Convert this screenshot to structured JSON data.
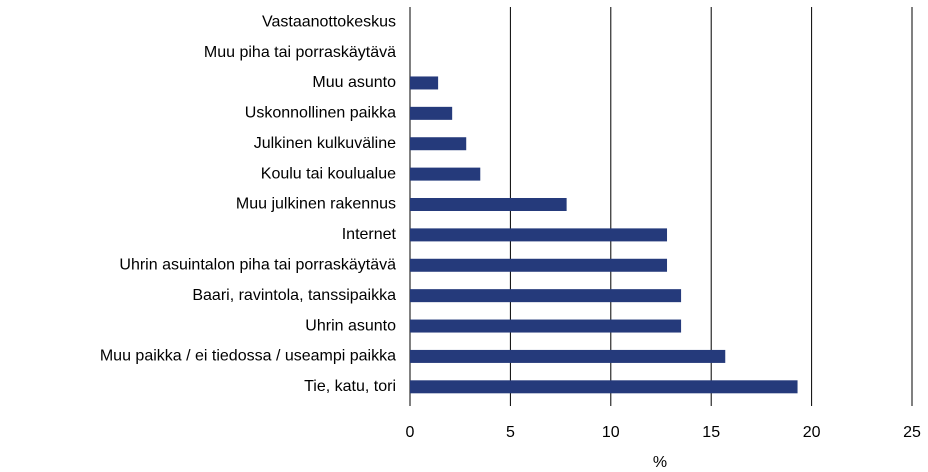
{
  "chart_data": {
    "type": "barh",
    "categories": [
      "Vastaanottokeskus",
      "Muu piha tai porraskäytävä",
      "Muu asunto",
      "Uskonnollinen paikka",
      "Julkinen kulkuväline",
      "Koulu tai koulualue",
      "Muu julkinen rakennus",
      "Internet",
      "Uhrin asuintalon piha tai porraskäytävä",
      "Baari, ravintola, tanssipaikka",
      "Uhrin asunto",
      "Muu paikka / ei tiedossa / useampi paikka",
      "Tie, katu, tori"
    ],
    "values": [
      0,
      0,
      1.4,
      2.1,
      2.8,
      3.5,
      7.8,
      12.8,
      12.8,
      13.5,
      13.5,
      15.7,
      19.3
    ],
    "color": "#253a7b",
    "x_label": "%",
    "xlim": [
      0,
      25
    ],
    "xticks": [
      0,
      5,
      10,
      15,
      20,
      25
    ],
    "grid": true
  }
}
